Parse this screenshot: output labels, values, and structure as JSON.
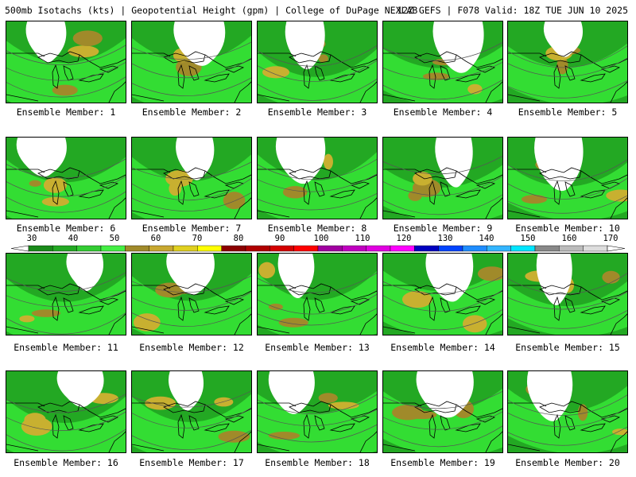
{
  "header": {
    "title_left": "500mb Isotachs (kts) | Geopotential Height (gpm) | College of DuPage NEXLAB",
    "title_right": "12Z GEFS | F078 Valid: 18Z TUE JUN 10 2025"
  },
  "caption_prefix": "Ensemble Member:",
  "members": [
    {
      "label": "Ensemble Member: 1"
    },
    {
      "label": "Ensemble Member: 2"
    },
    {
      "label": "Ensemble Member: 3"
    },
    {
      "label": "Ensemble Member: 4"
    },
    {
      "label": "Ensemble Member: 5"
    },
    {
      "label": "Ensemble Member: 6"
    },
    {
      "label": "Ensemble Member: 7"
    },
    {
      "label": "Ensemble Member: 8"
    },
    {
      "label": "Ensemble Member: 9"
    },
    {
      "label": "Ensemble Member: 10"
    },
    {
      "label": "Ensemble Member: 11"
    },
    {
      "label": "Ensemble Member: 12"
    },
    {
      "label": "Ensemble Member: 13"
    },
    {
      "label": "Ensemble Member: 14"
    },
    {
      "label": "Ensemble Member: 15"
    },
    {
      "label": "Ensemble Member: 16"
    },
    {
      "label": "Ensemble Member: 17"
    },
    {
      "label": "Ensemble Member: 18"
    },
    {
      "label": "Ensemble Member: 19"
    },
    {
      "label": "Ensemble Member: 20"
    }
  ],
  "colorbar": {
    "ticks": [
      "30",
      "40",
      "50",
      "60",
      "70",
      "80",
      "90",
      "100",
      "110",
      "120",
      "130",
      "140",
      "150",
      "160",
      "170"
    ],
    "colors": [
      "#1a8a1a",
      "#23a823",
      "#33cc33",
      "#44ee44",
      "#a08a2a",
      "#c8a830",
      "#e0d020",
      "#ffff00",
      "#8b0000",
      "#b00000",
      "#d40000",
      "#ff0000",
      "#a000a0",
      "#c000c0",
      "#e000e0",
      "#ff00ff",
      "#0000c0",
      "#0044ff",
      "#1f8cff",
      "#33b5ff",
      "#00e5ff",
      "#888888",
      "#bbbbbb",
      "#dddddd"
    ]
  }
}
